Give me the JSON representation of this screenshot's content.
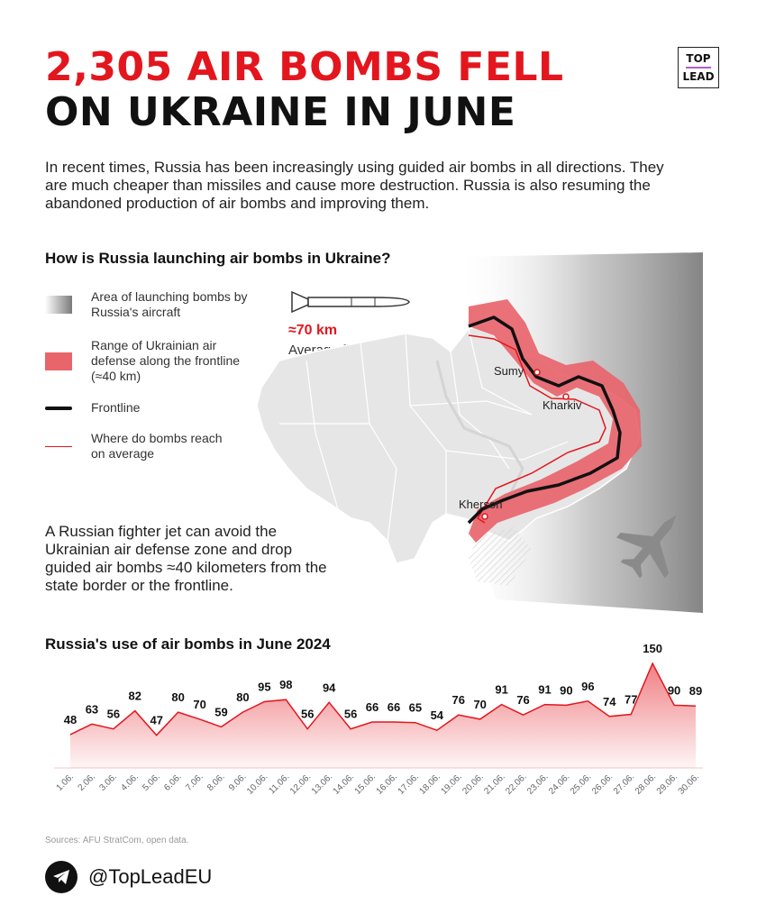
{
  "header": {
    "title_line1": "2,305 AIR BOMBS FELL",
    "title_line2": "ON UKRAINE IN JUNE",
    "logo_top": "TOP",
    "logo_bottom": "LEAD"
  },
  "intro": "In recent times, Russia has been increasingly using guided air bombs in all directions. They are much cheaper than missiles and cause more destruction. Russia is also resuming the abandoned production of air bombs and improving them.",
  "map_section": {
    "question": "How is Russia launching air bombs in Ukraine?",
    "legend": [
      {
        "label": "Area of launching bombs by Russia's aircraft"
      },
      {
        "label": "Range of Ukrainian air defense along the frontline (≈40 km)"
      },
      {
        "label": "Frontline"
      },
      {
        "label": "Where do bombs reach on average"
      }
    ],
    "range_value": "≈70 km",
    "range_label": "Average flight range",
    "cities": {
      "sumy": "Sumy",
      "kharkiv": "Kharkiv",
      "kherson": "Kherson"
    },
    "jet_text": "A Russian fighter jet can avoid the Ukrainian air defense zone and drop guided air bombs ≈40 kilometers from the state border or the frontline.",
    "colors": {
      "air_defense": "#e8656c",
      "frontline": "#111111",
      "reach": "#e3161e",
      "land": "#e6e6e6"
    }
  },
  "chart_section": {
    "question": "Russia's use of air bombs in June 2024"
  },
  "chart_data": {
    "type": "area",
    "title": "Russia's use of air bombs in June 2024",
    "categories": [
      "1.06.",
      "2.06.",
      "3.06.",
      "4.06.",
      "5.06.",
      "6.06.",
      "7.06.",
      "8.06.",
      "9.06.",
      "10.06.",
      "11.06.",
      "12.06.",
      "13.06.",
      "14.06.",
      "15.06.",
      "16.06.",
      "17.06.",
      "18.06.",
      "19.06.",
      "20.06.",
      "21.06.",
      "22.06.",
      "23.06.",
      "24.06.",
      "25.06.",
      "26.06.",
      "27.06.",
      "28.06.",
      "29.06.",
      "30.06."
    ],
    "values": [
      48,
      63,
      56,
      82,
      47,
      80,
      70,
      59,
      80,
      95,
      98,
      56,
      94,
      56,
      66,
      66,
      65,
      54,
      76,
      70,
      91,
      76,
      91,
      90,
      96,
      74,
      77,
      150,
      90,
      89
    ],
    "color": "#e3161e",
    "grid": false
  },
  "footer": {
    "sources": "Sources: AFU StratCom, open data.",
    "handle": "@TopLeadEU"
  }
}
